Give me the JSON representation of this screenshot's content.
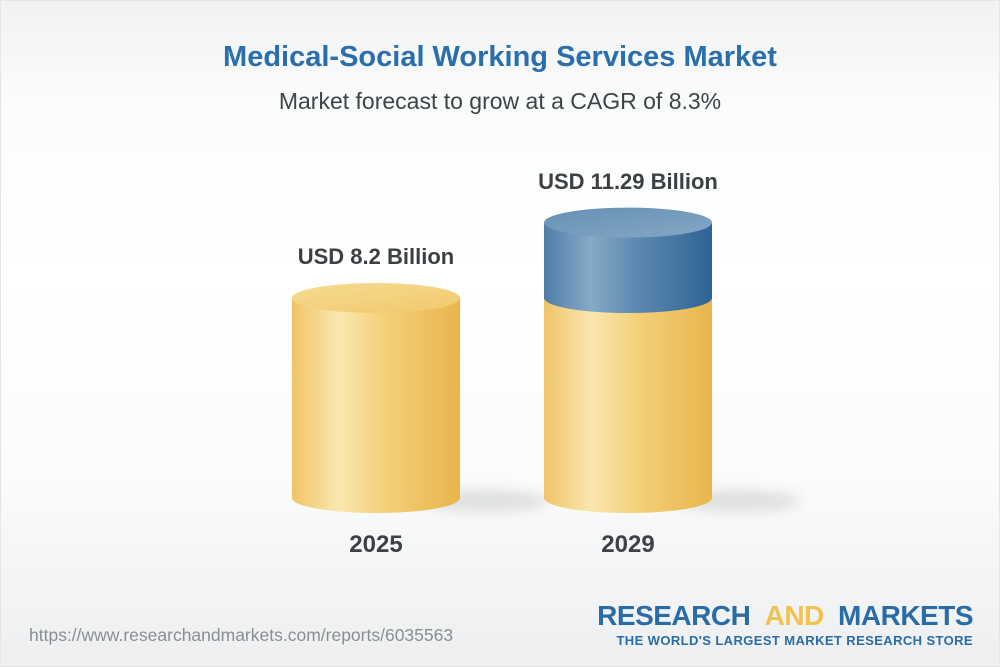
{
  "header": {
    "title": "Medical-Social Working Services Market",
    "subtitle": "Market forecast to grow at a CAGR of 8.3%"
  },
  "chart_data": {
    "type": "bar",
    "style": "3d-cylinder",
    "title": "Medical-Social Working Services Market",
    "subtitle": "Market forecast to grow at a CAGR of 8.3%",
    "cagr_percent": 8.3,
    "unit": "USD Billion",
    "categories": [
      "2025",
      "2029"
    ],
    "values": [
      8.2,
      11.29
    ],
    "value_labels": [
      "USD 8.2 Billion",
      "USD 11.29 Billion"
    ],
    "segments_note": "2029 cylinder = gold base segment equal to 2025 value (8.2) plus blue growth segment (3.09)",
    "ylim": [
      0,
      12
    ],
    "legend": "none",
    "grid": "off",
    "colors": {
      "base_body": [
        "#EFC468",
        "#FAE7AF",
        "#F4D07A",
        "#E9B54B"
      ],
      "base_top": [
        "#F7DB92",
        "#F1CA6F"
      ],
      "growth_body": [
        "#507EA8",
        "#86AAC8",
        "#5D89B1",
        "#2E6394"
      ],
      "growth_top": [
        "#6590B5",
        "#82A6C4"
      ],
      "label_text": "#3C4043"
    }
  },
  "footer": {
    "url": "https://www.researchandmarkets.com/reports/6035563",
    "logo": {
      "word1": "RESEARCH",
      "word2": "AND",
      "word3": "MARKETS",
      "tagline": "THE WORLD'S LARGEST MARKET RESEARCH STORE"
    }
  },
  "theme": {
    "title_color": "#2A6FAC",
    "subtitle_color": "#3D4347",
    "value_label_color": "#3C4043",
    "year_color": "#3D4145",
    "url_color": "#8B8E90",
    "logo_blue": "#2A6CA5",
    "logo_gold": "#F1C24E"
  }
}
